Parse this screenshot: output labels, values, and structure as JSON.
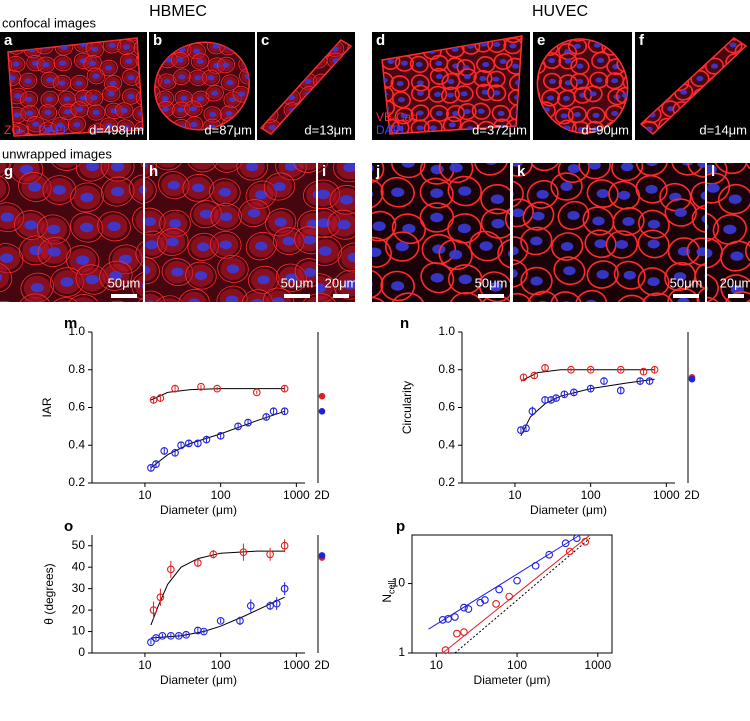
{
  "figure": {
    "headers": [
      "HBMEC",
      "HUVEC"
    ],
    "row_labels": [
      "confocal images",
      "unwrapped images"
    ],
    "panels": [
      {
        "letter": "a",
        "stains": [
          {
            "text": "ZO-1",
            "color": "#ff2a2a"
          },
          {
            "text": "DAPI",
            "color": "#4040ff"
          }
        ],
        "caption": "d=498μm"
      },
      {
        "letter": "b",
        "caption": "d=87μm"
      },
      {
        "letter": "c",
        "caption": "d=13μm"
      },
      {
        "letter": "d",
        "stains": [
          {
            "text": "VE-Cad",
            "color": "#ff2a2a"
          },
          {
            "text": "DAPI",
            "color": "#4040ff"
          }
        ],
        "caption": "d=372μm"
      },
      {
        "letter": "e",
        "caption": "d=90μm"
      },
      {
        "letter": "f",
        "caption": "d=14μm"
      },
      {
        "letter": "g",
        "scale_bar": "50μm"
      },
      {
        "letter": "h",
        "scale_bar": "50μm"
      },
      {
        "letter": "i",
        "scale_bar": "20μm"
      },
      {
        "letter": "j",
        "scale_bar": "50μm"
      },
      {
        "letter": "k",
        "scale_bar": "50μm"
      },
      {
        "letter": "l",
        "scale_bar": "20μm"
      }
    ]
  },
  "chart_data": [
    {
      "type": "scatter",
      "letter": "m",
      "ylabel": "IAR",
      "xlabel": "Diameter (μm)",
      "x2d_label": "2D",
      "log_x": true,
      "xlim": [
        2,
        1300
      ],
      "xticks": [
        10,
        100,
        1000
      ],
      "ylim": [
        0.2,
        1.0
      ],
      "yticks": [
        0.2,
        0.4,
        0.6,
        0.8,
        {
          "value": 1,
          "label": "1.0"
        }
      ],
      "series": [
        {
          "color": "#e02020",
          "x": [
            13,
            16,
            25,
            55,
            90,
            300,
            700
          ],
          "values": [
            0.64,
            0.65,
            0.7,
            0.71,
            0.7,
            0.68,
            0.7
          ],
          "errors": [
            0.02,
            0.02,
            0.02,
            0.01,
            0.01,
            0.01,
            0.015
          ],
          "value_2d": 0.66
        },
        {
          "color": "#2020e0",
          "x": [
            12,
            14,
            18,
            25,
            30,
            38,
            50,
            65,
            100,
            170,
            230,
            400,
            500,
            700
          ],
          "values": [
            0.28,
            0.3,
            0.37,
            0.36,
            0.4,
            0.41,
            0.41,
            0.43,
            0.45,
            0.5,
            0.52,
            0.55,
            0.58,
            0.58
          ],
          "errors": [
            0.02,
            0.02,
            0.02,
            0.02,
            0.02,
            0.02,
            0.02,
            0.02,
            0.02,
            0.02,
            0.02,
            0.02,
            0.02,
            0.02
          ],
          "value_2d": 0.58
        }
      ],
      "fits": [
        {
          "color": "#000000",
          "x": [
            12,
            20,
            40,
            100,
            300,
            700
          ],
          "y": [
            0.64,
            0.68,
            0.695,
            0.7,
            0.7,
            0.7
          ]
        },
        {
          "color": "#000000",
          "x": [
            12,
            20,
            40,
            100,
            300,
            700
          ],
          "y": [
            0.28,
            0.35,
            0.41,
            0.46,
            0.53,
            0.58
          ]
        }
      ]
    },
    {
      "type": "scatter",
      "letter": "n",
      "ylabel": "Circularity",
      "xlabel": "Diameter (μm)",
      "x2d_label": "2D",
      "log_x": true,
      "xlim": [
        2,
        1300
      ],
      "xticks": [
        10,
        100,
        1000
      ],
      "ylim": [
        0.2,
        1.0
      ],
      "yticks": [
        0.2,
        0.4,
        0.6,
        0.8,
        {
          "value": 1,
          "label": "1.0"
        }
      ],
      "series": [
        {
          "color": "#e02020",
          "x": [
            13,
            18,
            25,
            55,
            100,
            250,
            500,
            700
          ],
          "values": [
            0.76,
            0.77,
            0.81,
            0.8,
            0.8,
            0.8,
            0.79,
            0.8
          ],
          "errors": [
            0.015,
            0.015,
            0.02,
            0.01,
            0.01,
            0.01,
            0.015,
            0.015
          ],
          "value_2d": 0.76
        },
        {
          "color": "#2020e0",
          "x": [
            12,
            14,
            17,
            25,
            30,
            35,
            45,
            60,
            100,
            150,
            250,
            450,
            600
          ],
          "values": [
            0.48,
            0.49,
            0.58,
            0.64,
            0.64,
            0.65,
            0.67,
            0.68,
            0.7,
            0.74,
            0.69,
            0.74,
            0.74
          ],
          "errors": [
            0.02,
            0.02,
            0.025,
            0.02,
            0.015,
            0.015,
            0.015,
            0.015,
            0.02,
            0.02,
            0.02,
            0.02,
            0.015
          ],
          "value_2d": 0.75
        }
      ],
      "fits": [
        {
          "color": "#000000",
          "x": [
            12,
            20,
            40,
            100,
            700
          ],
          "y": [
            0.74,
            0.785,
            0.8,
            0.8,
            0.8
          ]
        },
        {
          "color": "#000000",
          "x": [
            12,
            16,
            25,
            40,
            100,
            300,
            700
          ],
          "y": [
            0.45,
            0.55,
            0.62,
            0.66,
            0.7,
            0.73,
            0.75
          ]
        }
      ]
    },
    {
      "type": "scatter",
      "letter": "o",
      "ylabel": "θ (degrees)",
      "xlabel": "Diameter (μm)",
      "x2d_label": "2D",
      "log_x": true,
      "xlim": [
        2,
        1300
      ],
      "xticks": [
        10,
        100,
        1000
      ],
      "ylim": [
        0,
        55
      ],
      "yticks": [
        0,
        10,
        20,
        30,
        40,
        50
      ],
      "series": [
        {
          "color": "#e02020",
          "x": [
            13,
            16,
            22,
            50,
            80,
            200,
            450,
            700
          ],
          "values": [
            20,
            26,
            39,
            42,
            46,
            47,
            46,
            50
          ],
          "errors": [
            4,
            4,
            4,
            2,
            2,
            4,
            3,
            3
          ],
          "value_2d": 44.5
        },
        {
          "color": "#2020e0",
          "x": [
            12,
            14,
            17,
            22,
            28,
            35,
            50,
            60,
            100,
            180,
            250,
            450,
            550,
            700
          ],
          "values": [
            5,
            7,
            8,
            8,
            8,
            8.5,
            10.5,
            10,
            15,
            15,
            22,
            22,
            23,
            30
          ],
          "errors": [
            1,
            1,
            1,
            1,
            1,
            1,
            1.5,
            1,
            1,
            2,
            3,
            2,
            3,
            3
          ],
          "value_2d": 45.5
        }
      ],
      "fits": [
        {
          "color": "#000000",
          "x": [
            12,
            15,
            20,
            30,
            50,
            100,
            300,
            700
          ],
          "y": [
            13,
            22,
            32,
            40,
            44,
            46.5,
            47.5,
            47.5
          ]
        },
        {
          "color": "#000000",
          "x": [
            12,
            30,
            60,
            100,
            200,
            400,
            700
          ],
          "y": [
            7,
            8,
            10,
            12.5,
            17,
            22,
            26
          ]
        }
      ]
    },
    {
      "type": "scatter",
      "letter": "p",
      "ylabel": "N",
      "ylabel_sub": "cell",
      "xlabel": "Diameter (μm)",
      "frame": true,
      "log_x": true,
      "log_y": true,
      "xlim": [
        5,
        1500
      ],
      "xticks": [
        10,
        100,
        1000
      ],
      "ylim": [
        1,
        50
      ],
      "yticks": [
        1,
        10
      ],
      "series": [
        {
          "color": "#2020e0",
          "x": [
            12,
            14,
            17,
            22,
            25,
            35,
            40,
            60,
            100,
            170,
            250,
            400,
            550
          ],
          "values": [
            3.0,
            3.1,
            3.3,
            4.5,
            4.3,
            5.3,
            5.8,
            8.2,
            11,
            18,
            26,
            38,
            45
          ]
        },
        {
          "color": "#e02020",
          "x": [
            13,
            18,
            22,
            55,
            80,
            450,
            700
          ],
          "values": [
            1.1,
            1.9,
            2.0,
            5.1,
            6.5,
            29,
            40
          ]
        }
      ],
      "fits": [
        {
          "color": "#2020e0",
          "x": [
            8,
            600
          ],
          "y": [
            2.2,
            50
          ]
        },
        {
          "color": "#e02020",
          "x": [
            12,
            800
          ],
          "y": [
            1,
            50
          ]
        },
        {
          "color": "#000000",
          "dashed": true,
          "x": [
            17,
            800
          ],
          "y": [
            1,
            45
          ]
        }
      ]
    }
  ]
}
